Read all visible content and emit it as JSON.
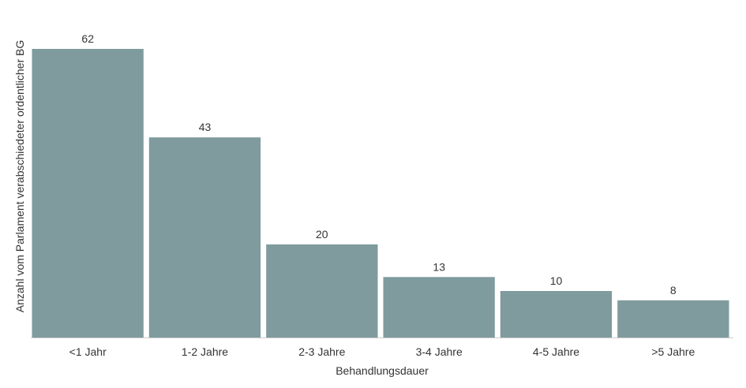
{
  "chart_data": {
    "type": "bar",
    "categories": [
      "<1 Jahr",
      "1-2 Jahre",
      "2-3 Jahre",
      "3-4 Jahre",
      "4-5 Jahre",
      ">5 Jahre"
    ],
    "values": [
      62,
      43,
      20,
      13,
      10,
      8
    ],
    "title": "",
    "xlabel": "Behandlungsdauer",
    "ylabel": "Anzahl vom Parlament verabschiedeter ordentlicher BG",
    "ylim": [
      0,
      62
    ],
    "grid": false,
    "legend": "none",
    "data_labels": true,
    "bar_color": "#7f9b9d",
    "baseline_color": "#cccccc",
    "text_color": "#333333"
  }
}
